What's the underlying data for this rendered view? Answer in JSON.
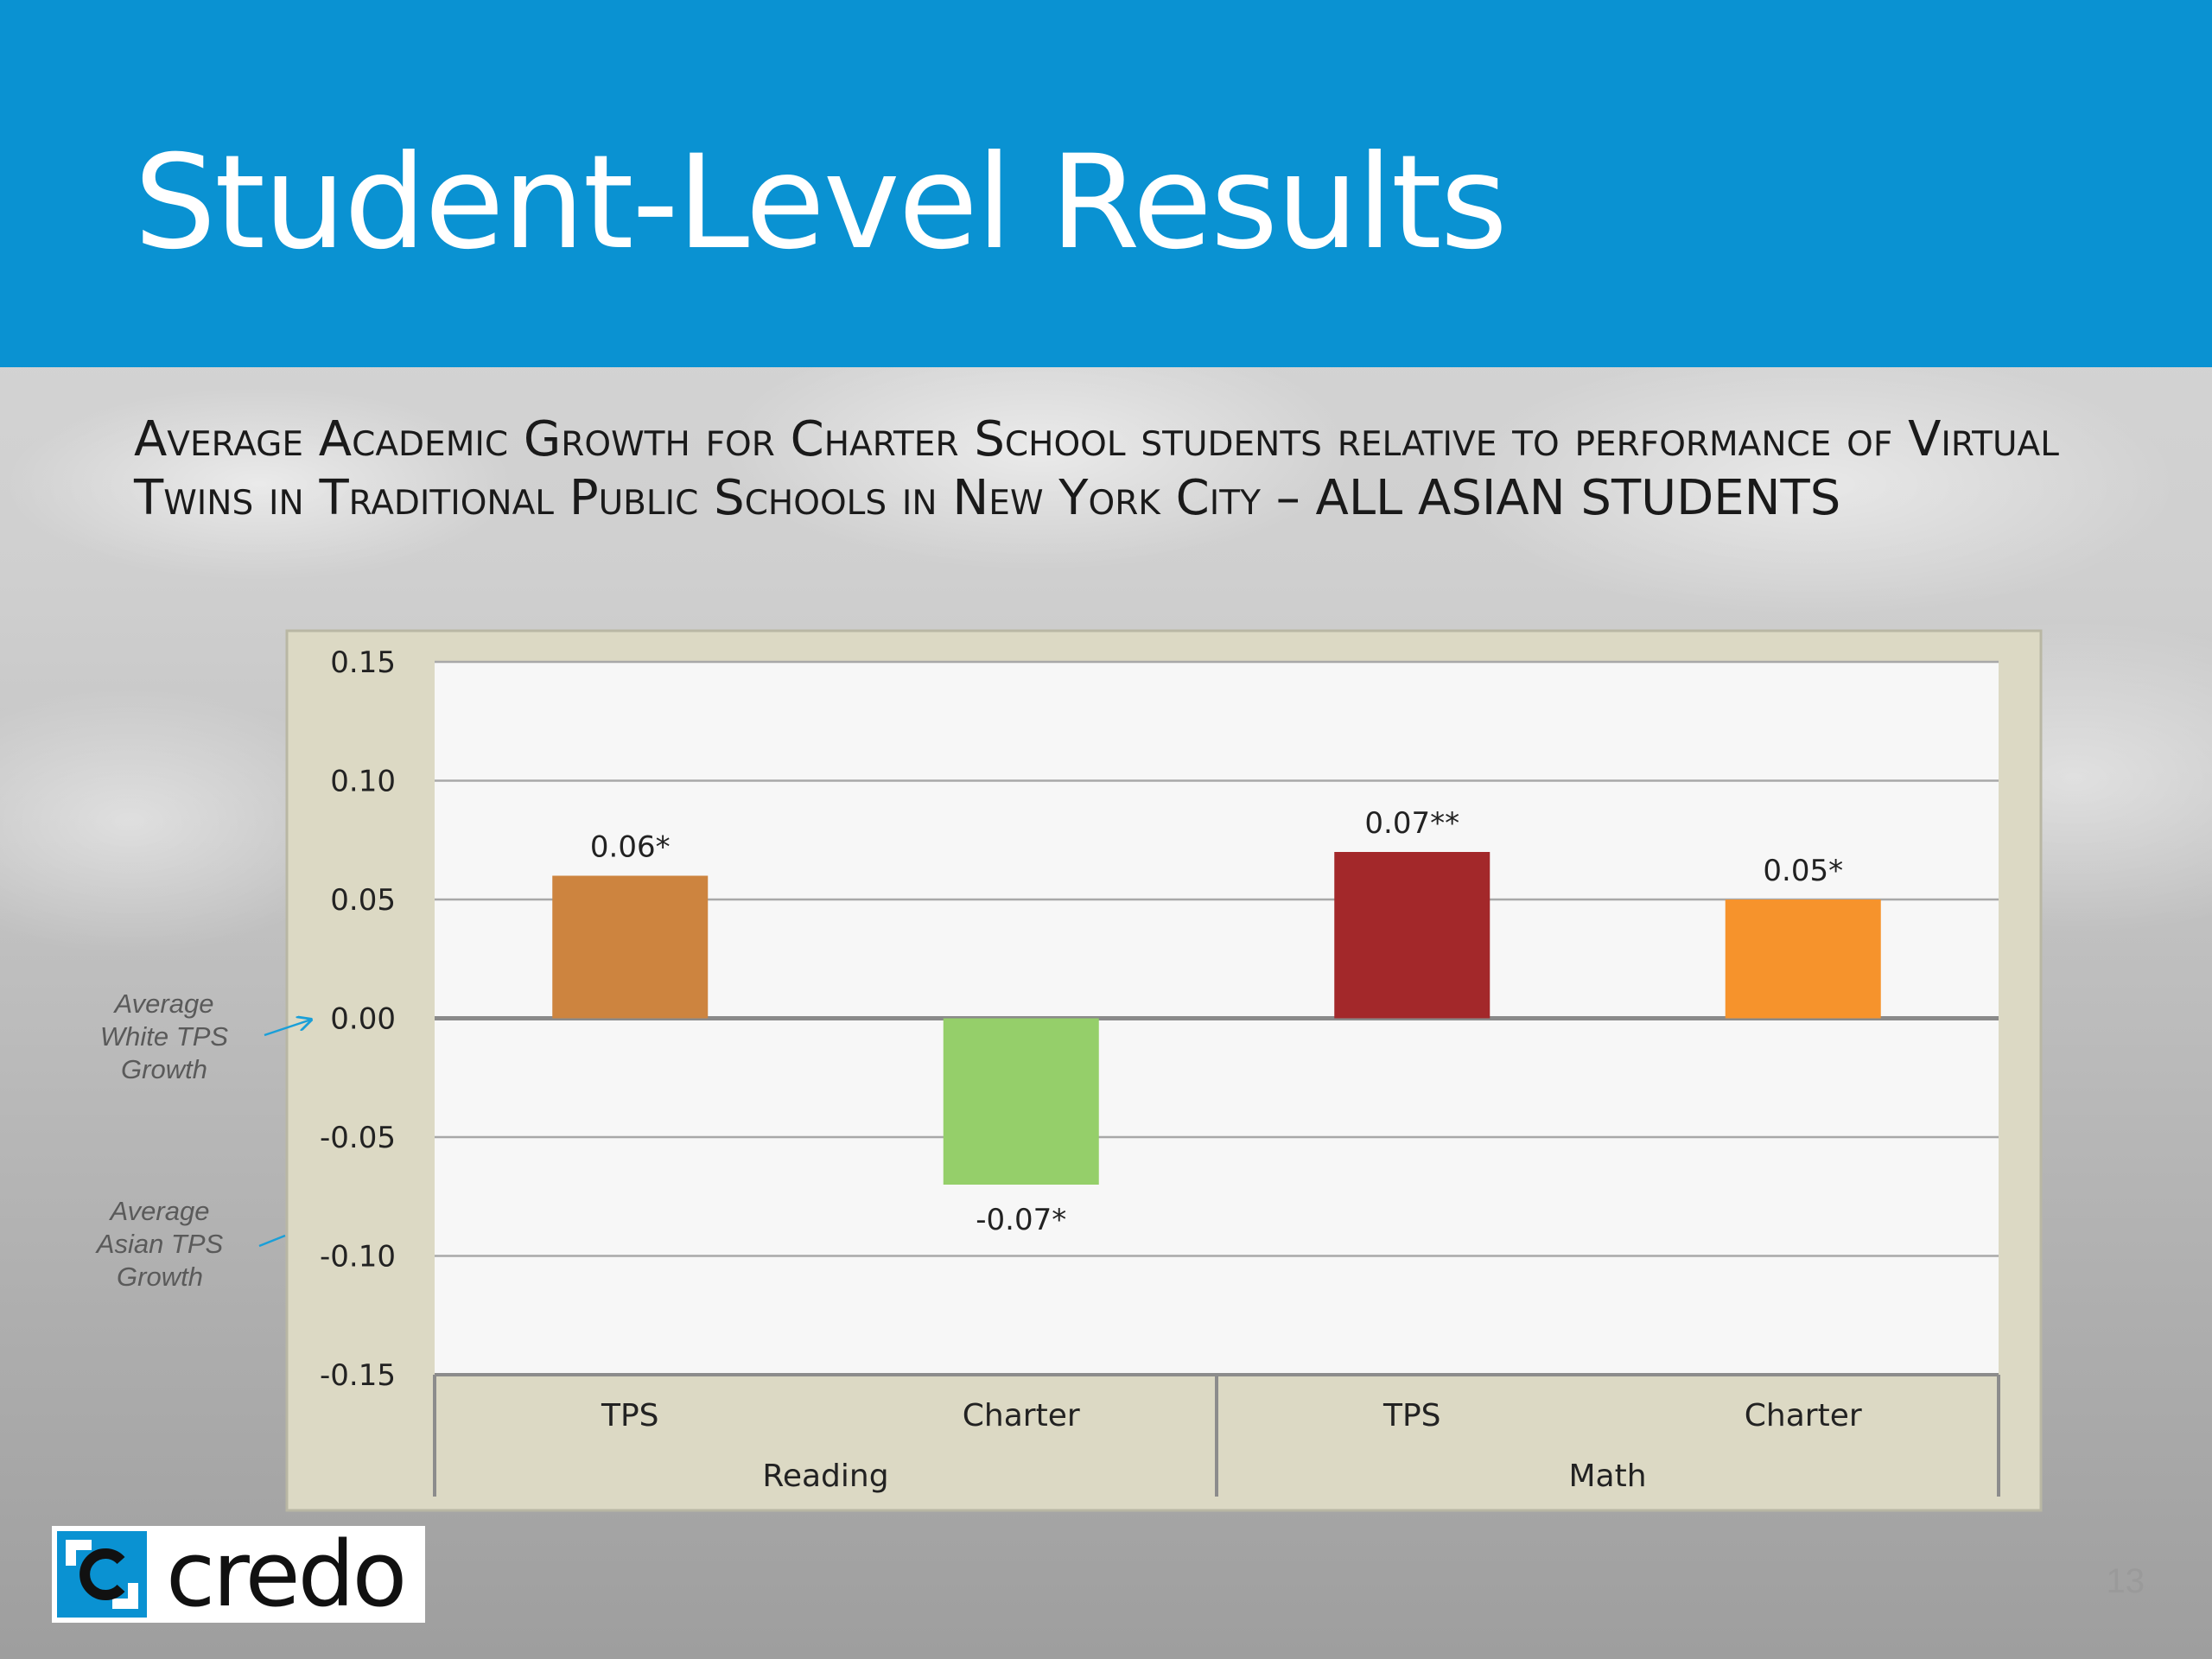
{
  "slide": {
    "title": "Student-Level Results",
    "subtitle": "Average Academic Growth for Charter School students relative to performance of Virtual Twins in Traditional Public Schools in New York City – ALL ASIAN STUDENTS",
    "page_number": "13",
    "logo_text": "credo"
  },
  "annotations": {
    "white_tps": "Average White TPS Growth",
    "asian_tps": "Average Asian TPS Growth"
  },
  "colors": {
    "header": "#0a92d2",
    "plot_frame": "#dcd9c4",
    "plot_bg": "#f7f7f7",
    "arrow": "#1a9fd8"
  },
  "chart_data": {
    "type": "bar",
    "title": "",
    "xlabel": "",
    "ylabel": "",
    "ylim": [
      -0.15,
      0.15
    ],
    "yticks": [
      0.15,
      0.1,
      0.05,
      0.0,
      -0.05,
      -0.1,
      -0.15
    ],
    "ytick_labels": [
      "0.15",
      "0.10",
      "0.05",
      "0.00",
      "-0.05",
      "-0.10",
      "-0.15"
    ],
    "grid": true,
    "groups": [
      {
        "name": "Reading",
        "categories": [
          "TPS",
          "Charter"
        ]
      },
      {
        "name": "Math",
        "categories": [
          "TPS",
          "Charter"
        ]
      }
    ],
    "bars": [
      {
        "group": "Reading",
        "category": "TPS",
        "value": 0.06,
        "label": "0.06*",
        "color": "#cd843f"
      },
      {
        "group": "Reading",
        "category": "Charter",
        "value": -0.07,
        "label": "-0.07*",
        "color": "#95cf6a"
      },
      {
        "group": "Math",
        "category": "TPS",
        "value": 0.07,
        "label": "0.07**",
        "color": "#a3282a"
      },
      {
        "group": "Math",
        "category": "Charter",
        "value": 0.05,
        "label": "0.05*",
        "color": "#f6932c"
      }
    ]
  }
}
